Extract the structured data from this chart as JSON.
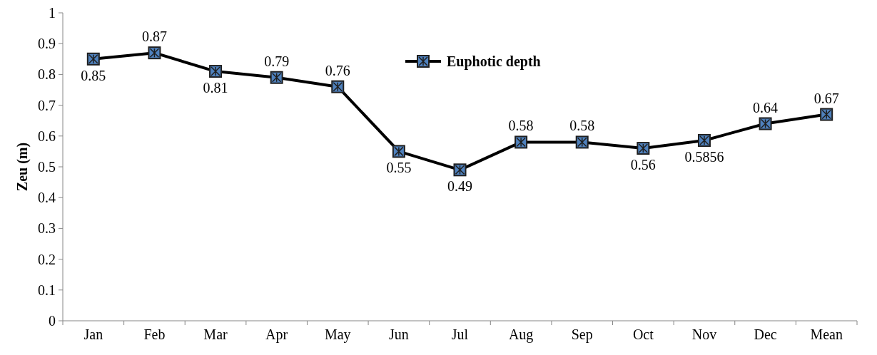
{
  "chart_data": {
    "type": "line",
    "ylabel": "Zeu (m)",
    "categories": [
      "Jan",
      "Feb",
      "Mar",
      "Apr",
      "May",
      "Jun",
      "Jul",
      "Aug",
      "Sep",
      "Oct",
      "Nov",
      "Dec",
      "Mean"
    ],
    "series": [
      {
        "name": "Euphotic depth",
        "color": "#000000",
        "values": [
          0.85,
          0.87,
          0.81,
          0.79,
          0.76,
          0.55,
          0.49,
          0.58,
          0.58,
          0.56,
          0.5856,
          0.64,
          0.67
        ]
      }
    ],
    "ylim": [
      0,
      1
    ],
    "yticks": [
      0,
      0.1,
      0.2,
      0.3,
      0.4,
      0.5,
      0.6,
      0.7,
      0.8,
      0.9,
      1
    ],
    "data_labels": true,
    "legend": "top",
    "marker": "square",
    "line_style": "solid",
    "grid": false
  }
}
